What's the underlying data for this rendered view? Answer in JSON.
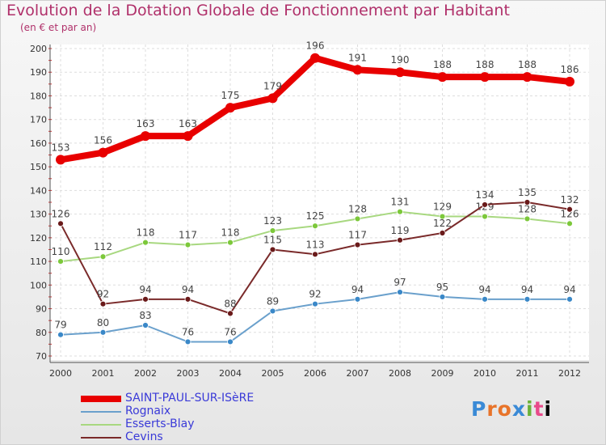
{
  "title": "Evolution de la Dotation Globale de Fonctionnement par Habitant",
  "subtitle": "(en € et par an)",
  "logo": "Proxiti",
  "chart_data": {
    "type": "line",
    "title": "Evolution de la Dotation Globale de Fonctionnement par Habitant",
    "subtitle": "(en € et par an)",
    "x": [
      2000,
      2001,
      2002,
      2003,
      2004,
      2005,
      2006,
      2007,
      2008,
      2009,
      2010,
      2011,
      2012
    ],
    "ylim": [
      70,
      200
    ],
    "yticks": [
      70,
      80,
      90,
      100,
      110,
      120,
      130,
      140,
      150,
      160,
      170,
      180,
      190,
      200
    ],
    "grid": true,
    "legend_position": "bottom-left",
    "series": [
      {
        "name": "SAINT-PAUL-SUR-ISèRE",
        "color": "#e80000",
        "marker": "#e80000",
        "values": [
          153,
          156,
          163,
          163,
          175,
          179,
          196,
          191,
          190,
          188,
          188,
          188,
          186
        ]
      },
      {
        "name": "Rognaix",
        "color": "#6aa0cc",
        "marker": "#3a88c8",
        "values": [
          79,
          80,
          83,
          76,
          76,
          89,
          92,
          94,
          97,
          95,
          94,
          94,
          94
        ]
      },
      {
        "name": "Esserts-Blay",
        "color": "#a8d880",
        "marker": "#7cc83a",
        "values": [
          110,
          112,
          118,
          117,
          118,
          123,
          125,
          128,
          131,
          129,
          129,
          128,
          126
        ]
      },
      {
        "name": "Cevins",
        "color": "#7a2a2a",
        "marker": "#6a1a1a",
        "values": [
          126,
          92,
          94,
          94,
          88,
          115,
          113,
          117,
          119,
          122,
          134,
          135,
          132
        ]
      }
    ]
  }
}
